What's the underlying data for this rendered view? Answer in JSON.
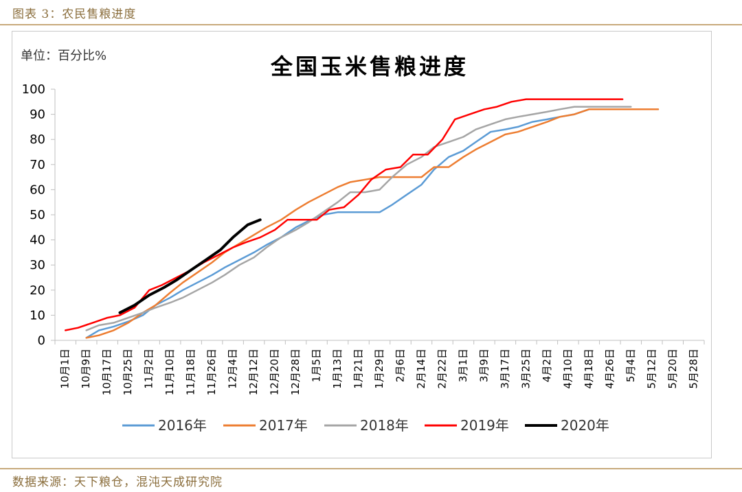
{
  "header": {
    "figure_title": "图表 3：农民售粮进度"
  },
  "footer": {
    "source": "数据来源：天下粮仓，混沌天成研究院"
  },
  "colors": {
    "2016年": "#5b9bd5",
    "2017年": "#ed7d31",
    "2018年": "#a5a5a5",
    "2019年": "#ff0000",
    "2020年": "#000000"
  },
  "chart_data": {
    "type": "line",
    "title": "全国玉米售粮进度",
    "unit_label": "单位：百分比%",
    "ylim": [
      0,
      100
    ],
    "yticks": [
      "0",
      "10",
      "20",
      "30",
      "40",
      "50",
      "60",
      "70",
      "80",
      "90",
      "100"
    ],
    "categories": [
      "10月1日",
      "10月9日",
      "10月17日",
      "10月25日",
      "11月2日",
      "11月10日",
      "11月18日",
      "11月26日",
      "12月4日",
      "12月12日",
      "12月20日",
      "12月28日",
      "1月5日",
      "1月13日",
      "1月21日",
      "1月29日",
      "2月6日",
      "2月14日",
      "2月22日",
      "3月1日",
      "3月9日",
      "3月17日",
      "3月25日",
      "4月2日",
      "4月10日",
      "4月18日",
      "4月26日",
      "5月4日",
      "5月12日",
      "5月20日",
      "5月28日"
    ],
    "legend_position": "bottom",
    "series": [
      {
        "name": "2016年",
        "x": [
          1,
          1.6,
          2.3,
          3,
          3.7,
          4.3,
          5,
          5.6,
          6.3,
          7,
          7.6,
          8.3,
          9,
          9.6,
          10.3,
          11,
          11.6,
          12.3,
          13,
          13.6,
          14.3,
          15,
          15.6,
          16.3,
          17,
          17.6,
          18.3,
          19,
          19.6,
          20.3,
          21,
          21.6,
          22.3,
          23,
          23.6,
          24.3,
          25,
          25.6,
          26.3,
          27,
          27.6,
          28.3
        ],
        "y": [
          1,
          4,
          5.5,
          7.5,
          10,
          14,
          17,
          20,
          23,
          26,
          29,
          32,
          35,
          38,
          41,
          45,
          47.5,
          50,
          51,
          51,
          51,
          51,
          54,
          58,
          62,
          68,
          73,
          75.5,
          79,
          83,
          84,
          85,
          87,
          88,
          89,
          90,
          92,
          92,
          92,
          92,
          92,
          92
        ]
      },
      {
        "name": "2017年",
        "x": [
          1,
          1.6,
          2.3,
          3,
          3.7,
          4.3,
          5,
          5.6,
          6.3,
          7,
          7.6,
          8.3,
          9,
          9.6,
          10.3,
          11,
          11.6,
          12.3,
          13,
          13.6,
          14.3,
          15,
          15.6,
          16.3,
          17,
          17.6,
          18.3,
          19,
          19.6,
          20.3,
          21,
          21.6,
          22.3,
          23,
          23.6,
          24.3,
          25,
          25.6,
          26.3,
          27,
          27.6,
          28.3
        ],
        "y": [
          1,
          2,
          4,
          7,
          11,
          14,
          19,
          23,
          27,
          31,
          35,
          38.5,
          42,
          45,
          48,
          52,
          55,
          58,
          61,
          63,
          64,
          65,
          65,
          65,
          65,
          69,
          69,
          73,
          76,
          79,
          82,
          83,
          85,
          87,
          89,
          90,
          92,
          92,
          92,
          92,
          92,
          92
        ]
      },
      {
        "name": "2018年",
        "x": [
          1,
          1.6,
          2.3,
          3,
          3.7,
          4.3,
          5,
          5.6,
          6.3,
          7,
          7.6,
          8.3,
          9,
          9.6,
          10.3,
          11,
          11.6,
          12.3,
          13,
          13.6,
          14.3,
          15,
          15.6,
          16.3,
          17,
          17.6,
          18.3,
          19,
          19.6,
          20.3,
          21,
          21.6,
          22.3,
          23,
          23.6,
          24.3,
          25,
          25.6,
          26.3,
          27
        ],
        "y": [
          4,
          6,
          7,
          9,
          11,
          13,
          15,
          17,
          20,
          23,
          26,
          30,
          33,
          37,
          41,
          44,
          47,
          51,
          55,
          59,
          59,
          60,
          65,
          70,
          73,
          77,
          79,
          81,
          84,
          86,
          88,
          89,
          90,
          91,
          92,
          93,
          93,
          93,
          93,
          93
        ]
      },
      {
        "name": "2019年",
        "x": [
          0,
          0.6,
          1.3,
          2,
          2.6,
          3.3,
          4,
          4.6,
          5.3,
          6,
          6.6,
          7.3,
          8,
          8.6,
          9.3,
          10,
          10.6,
          11.3,
          12,
          12.6,
          13.3,
          14,
          14.6,
          15.3,
          16,
          16.6,
          17.3,
          18,
          18.6,
          19.3,
          20,
          20.6,
          21.3,
          22,
          22.6,
          23.3,
          24,
          24.6,
          25.3,
          26,
          26.6
        ],
        "y": [
          4,
          5,
          7,
          9,
          10,
          13,
          20,
          22,
          25,
          28,
          31,
          34,
          37,
          39,
          41,
          44,
          48,
          48,
          48,
          52,
          53,
          58,
          64,
          68,
          69,
          74,
          74,
          80,
          88,
          90,
          92,
          93,
          95,
          96,
          96,
          96,
          96,
          96,
          96,
          96,
          96
        ]
      },
      {
        "name": "2020年",
        "x": [
          2.6,
          3.3,
          4,
          4.7,
          5.3,
          6,
          6.7,
          7.4,
          8,
          8.7,
          9.3
        ],
        "y": [
          11,
          14,
          18,
          21,
          24,
          28,
          32,
          36,
          41,
          46,
          48
        ]
      }
    ]
  }
}
